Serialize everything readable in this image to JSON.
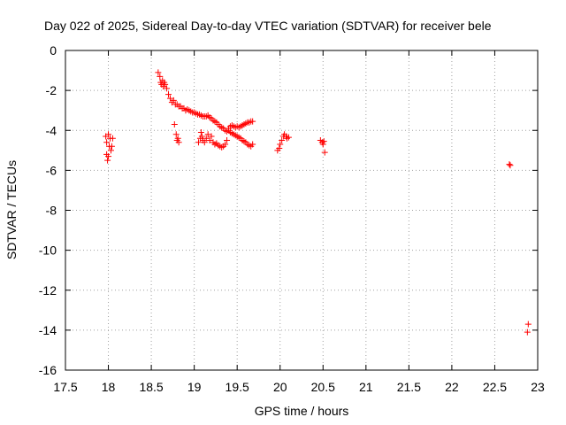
{
  "chart_data": {
    "type": "scatter",
    "title": "Day 022 of 2025, Sidereal Day-to-day VTEC variation (SDTVAR) for receiver bele",
    "xlabel": "GPS time / hours",
    "ylabel": "SDTVAR / TECUs",
    "xlim": [
      17.5,
      23
    ],
    "ylim": [
      -16,
      0
    ],
    "xticks": [
      17.5,
      18,
      18.5,
      19,
      19.5,
      20,
      20.5,
      21,
      21.5,
      22,
      22.5,
      23
    ],
    "xtick_labels": [
      "17.5",
      "18",
      "18.5",
      "19",
      "19.5",
      "20",
      "20.5",
      "21",
      "21.5",
      "22",
      "22.5",
      "23"
    ],
    "yticks": [
      0,
      -2,
      -4,
      -6,
      -8,
      -10,
      -12,
      -14,
      -16
    ],
    "ytick_labels": [
      "0",
      "-2",
      "-4",
      "-6",
      "-8",
      "-10",
      "-12",
      "-14",
      "-16"
    ],
    "grid": true,
    "marker": "+",
    "marker_color": "#ff0000",
    "series": [
      {
        "name": "SDTVAR",
        "points": [
          [
            17.97,
            -4.3
          ],
          [
            17.98,
            -4.6
          ],
          [
            17.98,
            -5.2
          ],
          [
            17.99,
            -5.5
          ],
          [
            18.0,
            -4.2
          ],
          [
            18.0,
            -5.3
          ],
          [
            18.01,
            -4.8
          ],
          [
            18.02,
            -4.4
          ],
          [
            18.03,
            -5.0
          ],
          [
            18.04,
            -4.8
          ],
          [
            18.05,
            -4.4
          ],
          [
            18.58,
            -1.1
          ],
          [
            18.6,
            -1.3
          ],
          [
            18.61,
            -1.6
          ],
          [
            18.62,
            -1.7
          ],
          [
            18.63,
            -1.5
          ],
          [
            18.64,
            -1.8
          ],
          [
            18.65,
            -1.6
          ],
          [
            18.66,
            -1.7
          ],
          [
            18.68,
            -1.9
          ],
          [
            18.7,
            -2.2
          ],
          [
            18.72,
            -2.4
          ],
          [
            18.74,
            -2.6
          ],
          [
            18.76,
            -2.5
          ],
          [
            18.78,
            -2.7
          ],
          [
            18.8,
            -2.7
          ],
          [
            18.82,
            -2.8
          ],
          [
            18.84,
            -2.8
          ],
          [
            18.86,
            -2.9
          ],
          [
            18.88,
            -2.9
          ],
          [
            18.9,
            -3.0
          ],
          [
            18.92,
            -2.95
          ],
          [
            18.94,
            -3.0
          ],
          [
            18.96,
            -3.05
          ],
          [
            18.98,
            -3.1
          ],
          [
            19.0,
            -3.1
          ],
          [
            19.02,
            -3.15
          ],
          [
            19.04,
            -3.2
          ],
          [
            19.06,
            -3.2
          ],
          [
            19.08,
            -3.25
          ],
          [
            19.1,
            -3.3
          ],
          [
            19.12,
            -3.3
          ],
          [
            19.14,
            -3.3
          ],
          [
            19.16,
            -3.25
          ],
          [
            19.18,
            -3.35
          ],
          [
            19.2,
            -3.4
          ],
          [
            19.22,
            -3.5
          ],
          [
            19.24,
            -3.55
          ],
          [
            19.26,
            -3.6
          ],
          [
            19.28,
            -3.7
          ],
          [
            19.3,
            -3.8
          ],
          [
            19.32,
            -3.85
          ],
          [
            19.34,
            -3.9
          ],
          [
            19.36,
            -4.0
          ],
          [
            19.38,
            -4.05
          ],
          [
            19.4,
            -3.9
          ],
          [
            19.42,
            -3.8
          ],
          [
            19.44,
            -3.75
          ],
          [
            19.46,
            -3.8
          ],
          [
            19.48,
            -3.85
          ],
          [
            19.5,
            -3.8
          ],
          [
            19.52,
            -3.85
          ],
          [
            19.54,
            -3.8
          ],
          [
            19.56,
            -3.75
          ],
          [
            19.58,
            -3.7
          ],
          [
            19.6,
            -3.65
          ],
          [
            19.62,
            -3.6
          ],
          [
            19.64,
            -3.6
          ],
          [
            19.66,
            -3.55
          ],
          [
            19.68,
            -3.55
          ],
          [
            19.4,
            -4.0
          ],
          [
            19.42,
            -4.1
          ],
          [
            19.44,
            -4.15
          ],
          [
            19.46,
            -4.2
          ],
          [
            19.48,
            -4.25
          ],
          [
            19.5,
            -4.3
          ],
          [
            19.52,
            -4.35
          ],
          [
            19.54,
            -4.4
          ],
          [
            19.56,
            -4.5
          ],
          [
            19.58,
            -4.55
          ],
          [
            19.6,
            -4.6
          ],
          [
            19.62,
            -4.7
          ],
          [
            19.64,
            -4.75
          ],
          [
            19.66,
            -4.8
          ],
          [
            19.68,
            -4.7
          ],
          [
            18.77,
            -3.7
          ],
          [
            18.79,
            -4.2
          ],
          [
            18.8,
            -4.5
          ],
          [
            18.81,
            -4.4
          ],
          [
            18.82,
            -4.6
          ],
          [
            19.05,
            -4.6
          ],
          [
            19.07,
            -4.4
          ],
          [
            19.08,
            -4.1
          ],
          [
            19.09,
            -4.3
          ],
          [
            19.1,
            -4.5
          ],
          [
            19.12,
            -4.6
          ],
          [
            19.14,
            -4.4
          ],
          [
            19.16,
            -4.2
          ],
          [
            19.18,
            -4.5
          ],
          [
            19.2,
            -4.3
          ],
          [
            19.22,
            -4.6
          ],
          [
            19.24,
            -4.7
          ],
          [
            19.26,
            -4.65
          ],
          [
            19.28,
            -4.75
          ],
          [
            19.3,
            -4.8
          ],
          [
            19.32,
            -4.85
          ],
          [
            19.34,
            -4.8
          ],
          [
            19.36,
            -4.7
          ],
          [
            19.38,
            -4.5
          ],
          [
            19.97,
            -5.0
          ],
          [
            19.99,
            -4.9
          ],
          [
            20.0,
            -4.7
          ],
          [
            20.02,
            -4.5
          ],
          [
            20.04,
            -4.3
          ],
          [
            20.05,
            -4.2
          ],
          [
            20.07,
            -4.3
          ],
          [
            20.08,
            -4.4
          ],
          [
            20.1,
            -4.35
          ],
          [
            20.47,
            -4.5
          ],
          [
            20.49,
            -4.6
          ],
          [
            20.5,
            -4.7
          ],
          [
            20.51,
            -4.55
          ],
          [
            20.52,
            -5.1
          ],
          [
            22.67,
            -5.7
          ],
          [
            22.68,
            -5.75
          ],
          [
            22.89,
            -13.7
          ],
          [
            22.88,
            -14.1
          ]
        ]
      }
    ]
  }
}
